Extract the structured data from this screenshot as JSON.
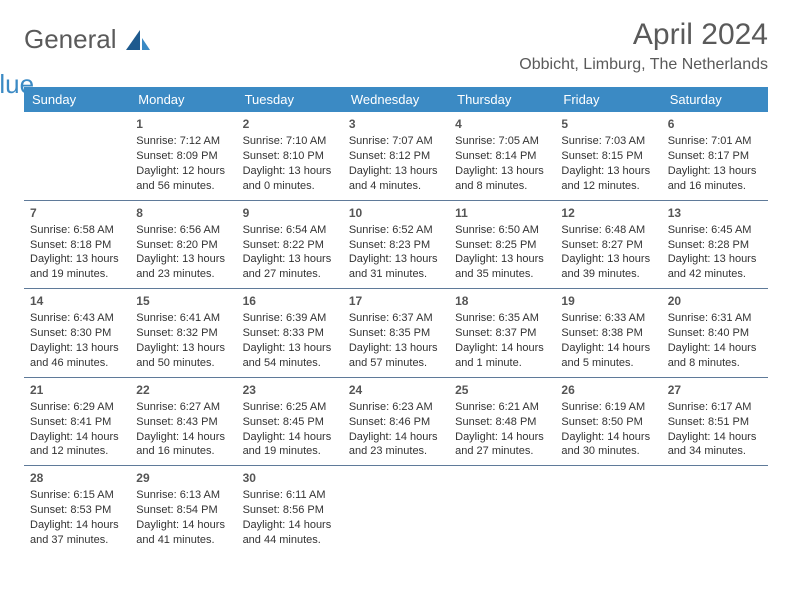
{
  "logo": {
    "word1": "General",
    "word2": "Blue"
  },
  "title": "April 2024",
  "location": "Obbicht, Limburg, The Netherlands",
  "colors": {
    "header_bg": "#3b8ac4",
    "header_text": "#ffffff",
    "rule": "#5f7a99",
    "body_text": "#333333",
    "title_text": "#5a5a5a"
  },
  "weekdays": [
    "Sunday",
    "Monday",
    "Tuesday",
    "Wednesday",
    "Thursday",
    "Friday",
    "Saturday"
  ],
  "weeks": [
    [
      null,
      {
        "n": "1",
        "sr": "Sunrise: 7:12 AM",
        "ss": "Sunset: 8:09 PM",
        "d1": "Daylight: 12 hours",
        "d2": "and 56 minutes."
      },
      {
        "n": "2",
        "sr": "Sunrise: 7:10 AM",
        "ss": "Sunset: 8:10 PM",
        "d1": "Daylight: 13 hours",
        "d2": "and 0 minutes."
      },
      {
        "n": "3",
        "sr": "Sunrise: 7:07 AM",
        "ss": "Sunset: 8:12 PM",
        "d1": "Daylight: 13 hours",
        "d2": "and 4 minutes."
      },
      {
        "n": "4",
        "sr": "Sunrise: 7:05 AM",
        "ss": "Sunset: 8:14 PM",
        "d1": "Daylight: 13 hours",
        "d2": "and 8 minutes."
      },
      {
        "n": "5",
        "sr": "Sunrise: 7:03 AM",
        "ss": "Sunset: 8:15 PM",
        "d1": "Daylight: 13 hours",
        "d2": "and 12 minutes."
      },
      {
        "n": "6",
        "sr": "Sunrise: 7:01 AM",
        "ss": "Sunset: 8:17 PM",
        "d1": "Daylight: 13 hours",
        "d2": "and 16 minutes."
      }
    ],
    [
      {
        "n": "7",
        "sr": "Sunrise: 6:58 AM",
        "ss": "Sunset: 8:18 PM",
        "d1": "Daylight: 13 hours",
        "d2": "and 19 minutes."
      },
      {
        "n": "8",
        "sr": "Sunrise: 6:56 AM",
        "ss": "Sunset: 8:20 PM",
        "d1": "Daylight: 13 hours",
        "d2": "and 23 minutes."
      },
      {
        "n": "9",
        "sr": "Sunrise: 6:54 AM",
        "ss": "Sunset: 8:22 PM",
        "d1": "Daylight: 13 hours",
        "d2": "and 27 minutes."
      },
      {
        "n": "10",
        "sr": "Sunrise: 6:52 AM",
        "ss": "Sunset: 8:23 PM",
        "d1": "Daylight: 13 hours",
        "d2": "and 31 minutes."
      },
      {
        "n": "11",
        "sr": "Sunrise: 6:50 AM",
        "ss": "Sunset: 8:25 PM",
        "d1": "Daylight: 13 hours",
        "d2": "and 35 minutes."
      },
      {
        "n": "12",
        "sr": "Sunrise: 6:48 AM",
        "ss": "Sunset: 8:27 PM",
        "d1": "Daylight: 13 hours",
        "d2": "and 39 minutes."
      },
      {
        "n": "13",
        "sr": "Sunrise: 6:45 AM",
        "ss": "Sunset: 8:28 PM",
        "d1": "Daylight: 13 hours",
        "d2": "and 42 minutes."
      }
    ],
    [
      {
        "n": "14",
        "sr": "Sunrise: 6:43 AM",
        "ss": "Sunset: 8:30 PM",
        "d1": "Daylight: 13 hours",
        "d2": "and 46 minutes."
      },
      {
        "n": "15",
        "sr": "Sunrise: 6:41 AM",
        "ss": "Sunset: 8:32 PM",
        "d1": "Daylight: 13 hours",
        "d2": "and 50 minutes."
      },
      {
        "n": "16",
        "sr": "Sunrise: 6:39 AM",
        "ss": "Sunset: 8:33 PM",
        "d1": "Daylight: 13 hours",
        "d2": "and 54 minutes."
      },
      {
        "n": "17",
        "sr": "Sunrise: 6:37 AM",
        "ss": "Sunset: 8:35 PM",
        "d1": "Daylight: 13 hours",
        "d2": "and 57 minutes."
      },
      {
        "n": "18",
        "sr": "Sunrise: 6:35 AM",
        "ss": "Sunset: 8:37 PM",
        "d1": "Daylight: 14 hours",
        "d2": "and 1 minute."
      },
      {
        "n": "19",
        "sr": "Sunrise: 6:33 AM",
        "ss": "Sunset: 8:38 PM",
        "d1": "Daylight: 14 hours",
        "d2": "and 5 minutes."
      },
      {
        "n": "20",
        "sr": "Sunrise: 6:31 AM",
        "ss": "Sunset: 8:40 PM",
        "d1": "Daylight: 14 hours",
        "d2": "and 8 minutes."
      }
    ],
    [
      {
        "n": "21",
        "sr": "Sunrise: 6:29 AM",
        "ss": "Sunset: 8:41 PM",
        "d1": "Daylight: 14 hours",
        "d2": "and 12 minutes."
      },
      {
        "n": "22",
        "sr": "Sunrise: 6:27 AM",
        "ss": "Sunset: 8:43 PM",
        "d1": "Daylight: 14 hours",
        "d2": "and 16 minutes."
      },
      {
        "n": "23",
        "sr": "Sunrise: 6:25 AM",
        "ss": "Sunset: 8:45 PM",
        "d1": "Daylight: 14 hours",
        "d2": "and 19 minutes."
      },
      {
        "n": "24",
        "sr": "Sunrise: 6:23 AM",
        "ss": "Sunset: 8:46 PM",
        "d1": "Daylight: 14 hours",
        "d2": "and 23 minutes."
      },
      {
        "n": "25",
        "sr": "Sunrise: 6:21 AM",
        "ss": "Sunset: 8:48 PM",
        "d1": "Daylight: 14 hours",
        "d2": "and 27 minutes."
      },
      {
        "n": "26",
        "sr": "Sunrise: 6:19 AM",
        "ss": "Sunset: 8:50 PM",
        "d1": "Daylight: 14 hours",
        "d2": "and 30 minutes."
      },
      {
        "n": "27",
        "sr": "Sunrise: 6:17 AM",
        "ss": "Sunset: 8:51 PM",
        "d1": "Daylight: 14 hours",
        "d2": "and 34 minutes."
      }
    ],
    [
      {
        "n": "28",
        "sr": "Sunrise: 6:15 AM",
        "ss": "Sunset: 8:53 PM",
        "d1": "Daylight: 14 hours",
        "d2": "and 37 minutes."
      },
      {
        "n": "29",
        "sr": "Sunrise: 6:13 AM",
        "ss": "Sunset: 8:54 PM",
        "d1": "Daylight: 14 hours",
        "d2": "and 41 minutes."
      },
      {
        "n": "30",
        "sr": "Sunrise: 6:11 AM",
        "ss": "Sunset: 8:56 PM",
        "d1": "Daylight: 14 hours",
        "d2": "and 44 minutes."
      },
      null,
      null,
      null,
      null
    ]
  ]
}
